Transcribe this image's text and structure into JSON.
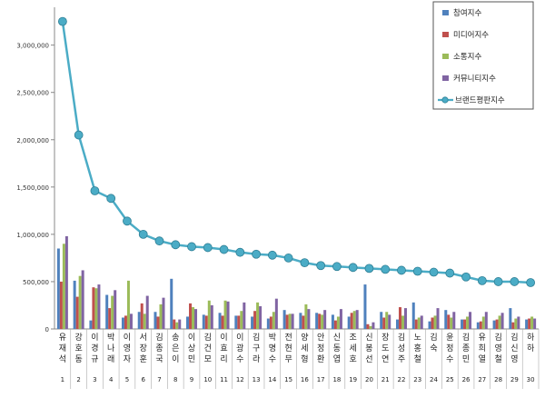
{
  "chart_data": {
    "type": "bar",
    "categories": [
      {
        "name": "유재석",
        "rank": "1"
      },
      {
        "name": "강호동",
        "rank": "2"
      },
      {
        "name": "이경규",
        "rank": "3"
      },
      {
        "name": "박나래",
        "rank": "4"
      },
      {
        "name": "이영자",
        "rank": "5"
      },
      {
        "name": "서장훈",
        "rank": "6"
      },
      {
        "name": "김종국",
        "rank": "7"
      },
      {
        "name": "송은이",
        "rank": "8"
      },
      {
        "name": "이상민",
        "rank": "9"
      },
      {
        "name": "김건모",
        "rank": "10"
      },
      {
        "name": "이효리",
        "rank": "11"
      },
      {
        "name": "이광수",
        "rank": "12"
      },
      {
        "name": "김구라",
        "rank": "13"
      },
      {
        "name": "박명수",
        "rank": "14"
      },
      {
        "name": "전현무",
        "rank": "15"
      },
      {
        "name": "양세형",
        "rank": "16"
      },
      {
        "name": "안정환",
        "rank": "17"
      },
      {
        "name": "신동엽",
        "rank": "18"
      },
      {
        "name": "조세호",
        "rank": "19"
      },
      {
        "name": "신봉선",
        "rank": "20"
      },
      {
        "name": "장도연",
        "rank": "21"
      },
      {
        "name": "김성주",
        "rank": "22"
      },
      {
        "name": "노홍철",
        "rank": "23"
      },
      {
        "name": "김숙",
        "rank": "24"
      },
      {
        "name": "윤정수",
        "rank": "25"
      },
      {
        "name": "김종민",
        "rank": "26"
      },
      {
        "name": "유희열",
        "rank": "27"
      },
      {
        "name": "김영철",
        "rank": "28"
      },
      {
        "name": "김신영",
        "rank": "29"
      },
      {
        "name": "하하",
        "rank": "30"
      }
    ],
    "series": [
      {
        "name": "참여지수",
        "color": "#4f81bd",
        "values": [
          850000,
          510000,
          90000,
          360000,
          120000,
          180000,
          180000,
          530000,
          130000,
          150000,
          170000,
          140000,
          130000,
          110000,
          200000,
          170000,
          170000,
          150000,
          130000,
          470000,
          180000,
          100000,
          280000,
          80000,
          200000,
          100000,
          70000,
          90000,
          220000,
          100000
        ]
      },
      {
        "name": "미디어지수",
        "color": "#c0504d",
        "values": [
          500000,
          340000,
          440000,
          220000,
          140000,
          270000,
          130000,
          100000,
          270000,
          140000,
          140000,
          140000,
          190000,
          130000,
          150000,
          140000,
          160000,
          90000,
          170000,
          50000,
          120000,
          230000,
          100000,
          120000,
          150000,
          100000,
          80000,
          100000,
          70000,
          110000
        ]
      },
      {
        "name": "소통지수",
        "color": "#9bbb59",
        "values": [
          900000,
          560000,
          430000,
          350000,
          510000,
          160000,
          260000,
          70000,
          230000,
          300000,
          300000,
          190000,
          280000,
          180000,
          160000,
          260000,
          150000,
          130000,
          190000,
          30000,
          180000,
          140000,
          120000,
          140000,
          120000,
          130000,
          130000,
          140000,
          110000,
          130000
        ]
      },
      {
        "name": "커뮤니티지수",
        "color": "#8064a2",
        "values": [
          980000,
          620000,
          470000,
          410000,
          160000,
          350000,
          330000,
          100000,
          210000,
          250000,
          290000,
          280000,
          240000,
          320000,
          160000,
          210000,
          200000,
          210000,
          200000,
          70000,
          150000,
          220000,
          140000,
          220000,
          180000,
          180000,
          180000,
          170000,
          130000,
          110000
        ]
      }
    ],
    "line": {
      "name": "브랜드평판지수",
      "color": "#4bacc6",
      "values": [
        3250000,
        2050000,
        1460000,
        1380000,
        1140000,
        1000000,
        930000,
        890000,
        870000,
        860000,
        840000,
        810000,
        790000,
        780000,
        750000,
        700000,
        670000,
        660000,
        650000,
        640000,
        630000,
        620000,
        610000,
        600000,
        590000,
        550000,
        510000,
        500000,
        500000,
        490000
      ]
    },
    "y_ticks": [
      "0",
      "500,000",
      "1,000,000",
      "1,500,000",
      "2,000,000",
      "2,500,000",
      "3,000,000"
    ],
    "ylim": [
      0,
      3400000
    ],
    "legend_position": "top-right",
    "grid": false
  }
}
